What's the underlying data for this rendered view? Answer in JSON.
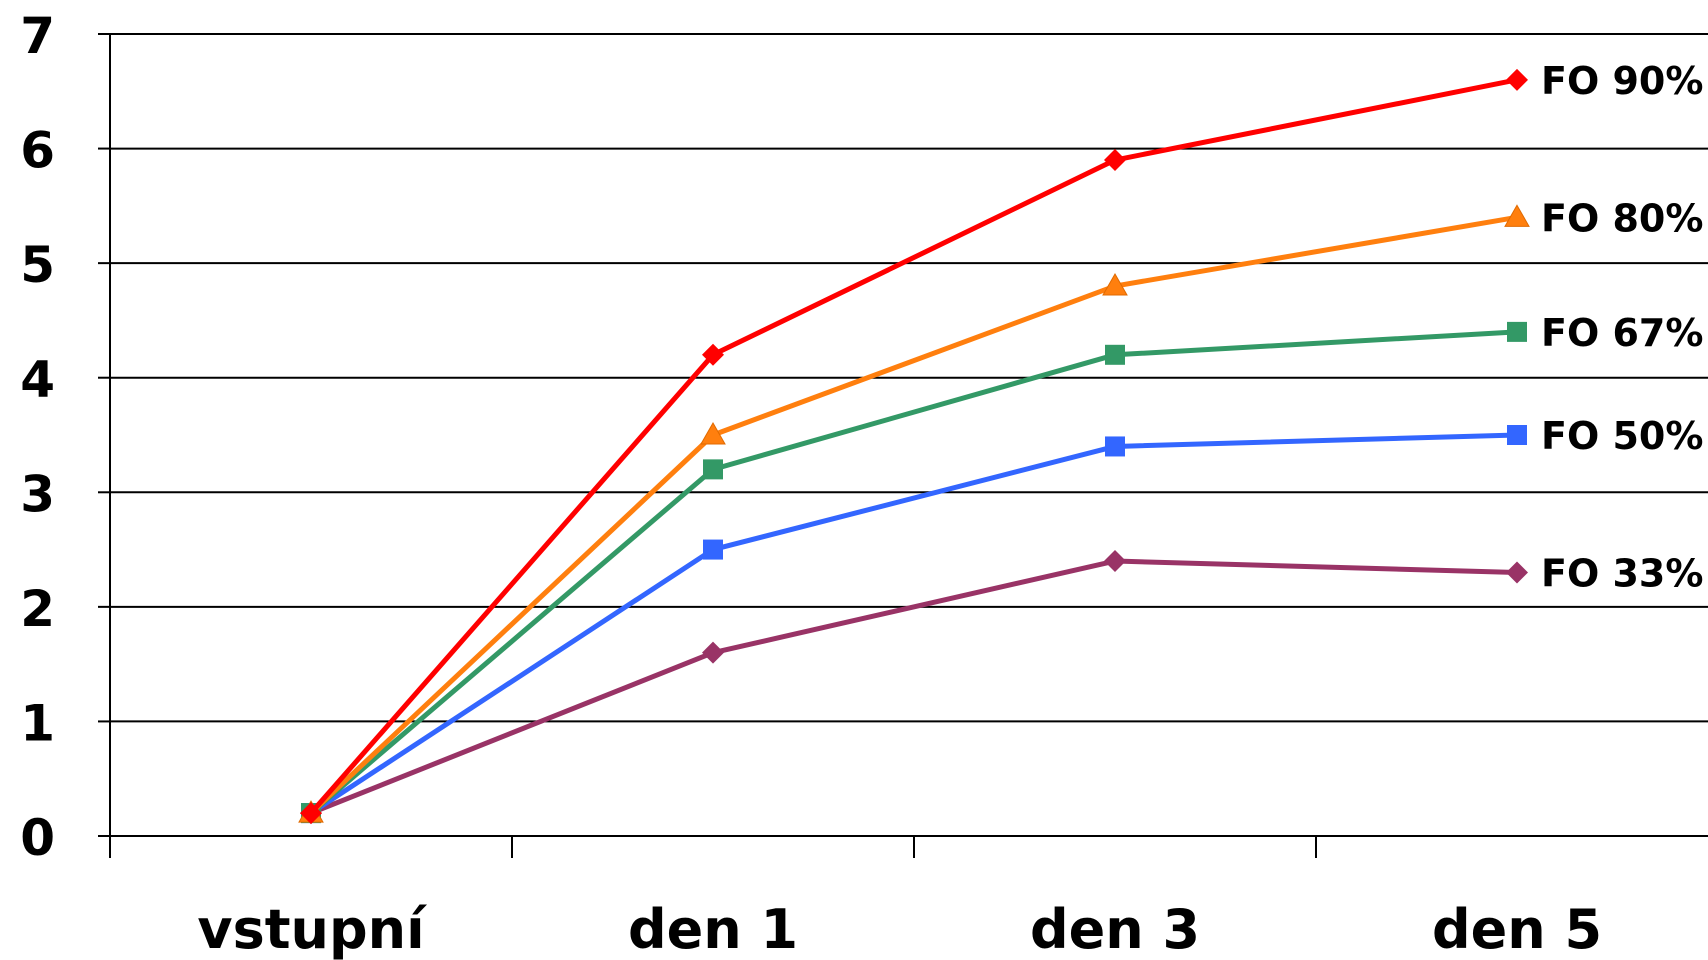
{
  "chart_data": {
    "type": "line",
    "categories": [
      "vstupní",
      "den 1",
      "den 3",
      "den 5"
    ],
    "ylim": [
      0,
      7
    ],
    "yticks": [
      0,
      1,
      2,
      3,
      4,
      5,
      6,
      7
    ],
    "grid": true,
    "legend": "inline labels at line ends",
    "series": [
      {
        "name": "FO 90%",
        "values": [
          0.2,
          4.2,
          5.9,
          6.6
        ],
        "color": "#ff0000",
        "marker": "diamond"
      },
      {
        "name": "FO 80%",
        "values": [
          0.2,
          3.5,
          4.8,
          5.4
        ],
        "color": "#ff7f0e",
        "marker": "triangle"
      },
      {
        "name": "FO 67%",
        "values": [
          0.2,
          3.2,
          4.2,
          4.4
        ],
        "color": "#339966",
        "marker": "square"
      },
      {
        "name": "FO 50%",
        "values": [
          0.2,
          2.5,
          3.4,
          3.5
        ],
        "color": "#3366ff",
        "marker": "square"
      },
      {
        "name": "FO 33%",
        "values": [
          0.2,
          1.6,
          2.4,
          2.3
        ],
        "color": "#993366",
        "marker": "diamond"
      }
    ]
  }
}
